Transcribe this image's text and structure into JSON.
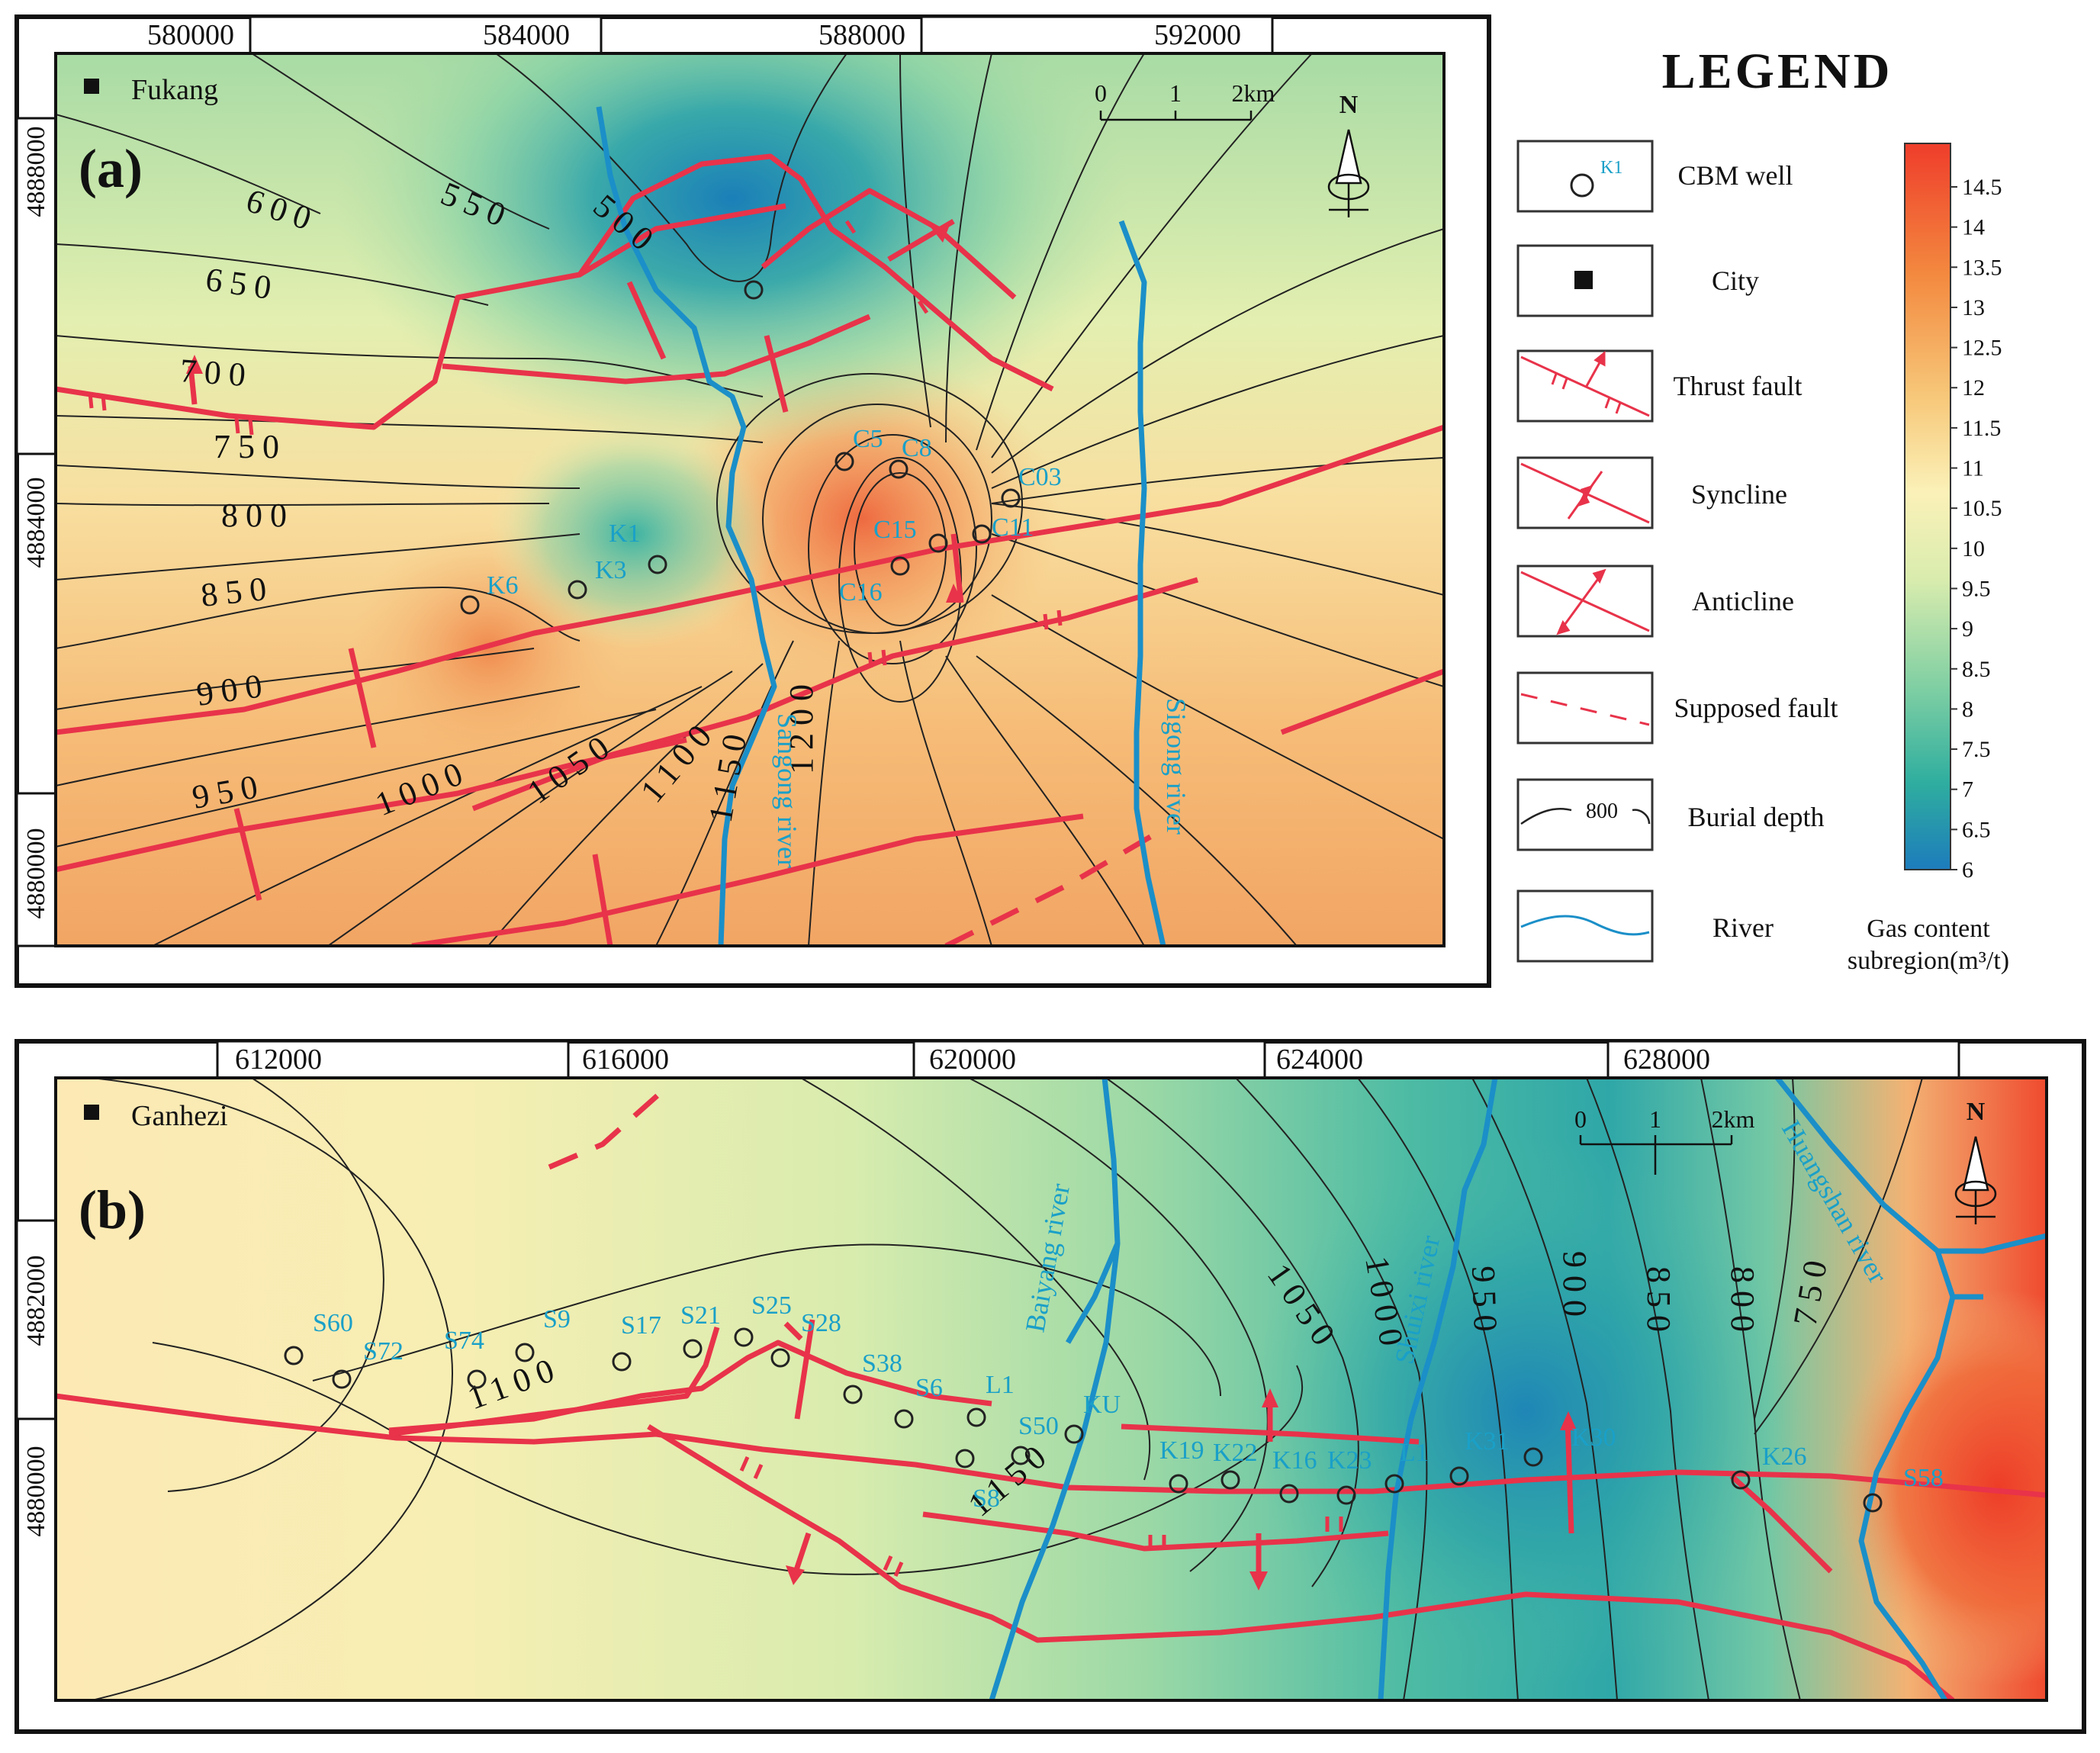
{
  "legend": {
    "title": "LEGEND",
    "items": [
      {
        "key": "cbm-well",
        "label": "CBM well",
        "sample": "K1"
      },
      {
        "key": "city",
        "label": "City"
      },
      {
        "key": "thrust-fault",
        "label": "Thrust fault"
      },
      {
        "key": "syncline",
        "label": "Syncline"
      },
      {
        "key": "anticline",
        "label": "Anticline"
      },
      {
        "key": "supposed-fault",
        "label": "Supposed fault"
      },
      {
        "key": "burial-depth",
        "label": "Burial depth",
        "sample": "800"
      },
      {
        "key": "river",
        "label": "River"
      }
    ],
    "colorbar": {
      "title_line1": "Gas content",
      "title_line2": "subregion(m³/t)",
      "ticks": [
        "14.5",
        "14",
        "13.5",
        "13",
        "12.5",
        "12",
        "11.5",
        "11",
        "10.5",
        "10",
        "9.5",
        "9",
        "8.5",
        "8",
        "7.5",
        "7",
        "6.5",
        "6"
      ]
    }
  },
  "colors": {
    "fault": "#e8334a",
    "river": "#1b8fc8",
    "well_label": "#1aa0c8",
    "gas_low": "#1f7fb8",
    "gas_high": "#f04a2a"
  },
  "panel_a": {
    "label": "(a)",
    "city": "Fukang",
    "x_ticks": [
      "580000",
      "584000",
      "588000",
      "592000"
    ],
    "y_ticks": [
      "4888000",
      "4884000",
      "4880000"
    ],
    "scale_ticks": [
      "0",
      "1",
      "2km"
    ],
    "north": "N",
    "contour_labels": [
      "600",
      "550",
      "500",
      "650",
      "700",
      "750",
      "800",
      "850",
      "900",
      "950",
      "1000",
      "1050",
      "1100",
      "1150",
      "1200"
    ],
    "wells": [
      "C5",
      "C8",
      "C03",
      "C15",
      "C11",
      "C16",
      "K1",
      "K3",
      "K6"
    ],
    "rivers": [
      "Sangong river",
      "Sigong river"
    ]
  },
  "panel_b": {
    "label": "(b)",
    "city": "Ganhezi",
    "x_ticks": [
      "612000",
      "616000",
      "620000",
      "624000",
      "628000"
    ],
    "y_ticks": [
      "4882000",
      "4880000"
    ],
    "scale_ticks": [
      "0",
      "1",
      "2km"
    ],
    "north": "N",
    "contour_labels": [
      "1100",
      "1150",
      "1050",
      "1000",
      "950",
      "900",
      "850",
      "800",
      "750"
    ],
    "wells": [
      "S60",
      "S72",
      "S74",
      "S9",
      "S17",
      "S21",
      "S25",
      "S28",
      "S38",
      "S6",
      "L1",
      "S50",
      "KU",
      "S8",
      "K19",
      "K22",
      "K16",
      "K23",
      "L1",
      "K31",
      "K30",
      "K26",
      "S58"
    ],
    "rivers": [
      "Baiyang river",
      "Shuixi river",
      "Huangshan river"
    ]
  }
}
